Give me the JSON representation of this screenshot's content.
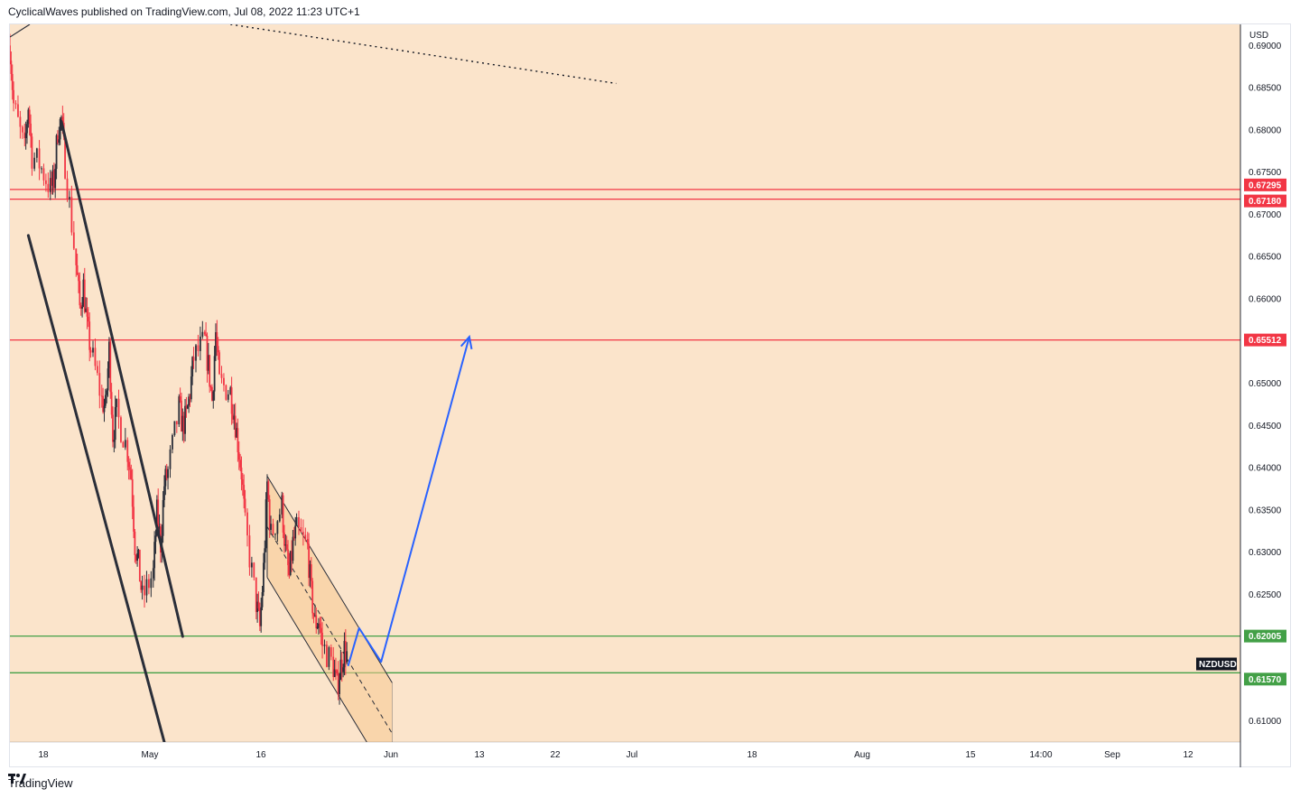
{
  "header": {
    "published_line": "CyclicalWaves published on TradingView.com, Jul 08, 2022 11:23 UTC+1"
  },
  "footer": {
    "brand": "TradingView"
  },
  "colors": {
    "background": "#fbe4cb",
    "up": "#2a2e39",
    "down": "#f23645",
    "resistance": "#f23645",
    "support": "#43a047",
    "projection": "#2962ff",
    "channel": "#2a2e39",
    "channel_fill": "#f7c891"
  },
  "chart_data": {
    "type": "candlestick",
    "symbol": "NZDUSD",
    "currency_label": "USD",
    "y_ticks": [
      "0.69000",
      "0.68500",
      "0.68000",
      "0.67500",
      "0.67000",
      "0.66500",
      "0.66000",
      "0.65500",
      "0.65000",
      "0.64500",
      "0.64000",
      "0.63500",
      "0.63000",
      "0.62500",
      "0.62000",
      "0.61500",
      "0.61000"
    ],
    "x_ticks": [
      "18",
      "May",
      "16",
      "Jun",
      "13",
      "22",
      "Jul",
      "18",
      "Aug",
      "15",
      "14:00",
      "Sep",
      "12"
    ],
    "ylim": [
      0.6075,
      0.6925
    ],
    "horizontal_levels": [
      {
        "value": 0.67295,
        "label": "0.67295",
        "kind": "resistance"
      },
      {
        "value": 0.6718,
        "label": "0.67180",
        "kind": "resistance"
      },
      {
        "value": 0.65512,
        "label": "0.65512",
        "kind": "resistance"
      },
      {
        "value": 0.62005,
        "label": "0.62005",
        "kind": "support"
      },
      {
        "value": 0.6157,
        "label": "0.61570",
        "kind": "support"
      }
    ],
    "symbol_tag": {
      "label": "NZDUSD",
      "value": 0.616
    },
    "price_path": [
      [
        "Apr 07",
        0.69
      ],
      [
        "Apr 08",
        0.683
      ],
      [
        "Apr 11",
        0.6775
      ],
      [
        "Apr 12",
        0.683
      ],
      [
        "Apr 13",
        0.677
      ],
      [
        "Apr 15",
        0.676
      ],
      [
        "Apr 18",
        0.673
      ],
      [
        "Apr 19",
        0.674
      ],
      [
        "Apr 20",
        0.68
      ],
      [
        "Apr 21",
        0.6812
      ],
      [
        "Apr 22",
        0.676
      ],
      [
        "Apr 25",
        0.664
      ],
      [
        "Apr 26",
        0.659
      ],
      [
        "Apr 27",
        0.6615
      ],
      [
        "Apr 28",
        0.6565
      ],
      [
        "Apr 29",
        0.654
      ],
      [
        "May 02",
        0.648
      ],
      [
        "May 03",
        0.647
      ],
      [
        "May 04",
        0.654
      ],
      [
        "May 05",
        0.644
      ],
      [
        "May 06",
        0.6465
      ],
      [
        "May 09",
        0.642
      ],
      [
        "May 10",
        0.639
      ],
      [
        "May 11",
        0.631
      ],
      [
        "May 12",
        0.6285
      ],
      [
        "May 13",
        0.6245
      ],
      [
        "May 16",
        0.6275
      ],
      [
        "May 17",
        0.6345
      ],
      [
        "May 18",
        0.631
      ],
      [
        "May 19",
        0.638
      ],
      [
        "May 20",
        0.6395
      ],
      [
        "May 23",
        0.647
      ],
      [
        "May 24",
        0.645
      ],
      [
        "May 25",
        0.646
      ],
      [
        "May 26",
        0.649
      ],
      [
        "May 27",
        0.653
      ],
      [
        "May 30",
        0.655
      ],
      [
        "May 31",
        0.652
      ],
      [
        "Jun 01",
        0.648
      ],
      [
        "Jun 02",
        0.656
      ],
      [
        "Jun 03",
        0.65
      ],
      [
        "Jun 06",
        0.649
      ],
      [
        "Jun 07",
        0.6465
      ],
      [
        "Jun 08",
        0.643
      ],
      [
        "Jun 09",
        0.6395
      ],
      [
        "Jun 10",
        0.633
      ],
      [
        "Jun 13",
        0.624
      ],
      [
        "Jun 14",
        0.621
      ],
      [
        "Jun 15",
        0.628
      ],
      [
        "Jun 16",
        0.638
      ],
      [
        "Jun 17",
        0.632
      ],
      [
        "Jun 20",
        0.6355
      ],
      [
        "Jun 21",
        0.63
      ],
      [
        "Jun 22",
        0.627
      ],
      [
        "Jun 23",
        0.631
      ],
      [
        "Jun 24",
        0.6325
      ],
      [
        "Jun 27",
        0.6305
      ],
      [
        "Jun 28",
        0.625
      ],
      [
        "Jun 29",
        0.6215
      ],
      [
        "Jun 30",
        0.622
      ],
      [
        "Jul 01",
        0.619
      ],
      [
        "Jul 04",
        0.6165
      ],
      [
        "Jul 05",
        0.614
      ],
      [
        "Jul 06",
        0.6165
      ],
      [
        "Jul 07",
        0.6185
      ],
      [
        "Jul 08",
        0.6175
      ]
    ],
    "channel_rect": [
      [
        "Jun 16",
        0.639
      ],
      [
        "Jul 11",
        0.621
      ],
      [
        "Jul 20",
        0.6175
      ],
      [
        "Jul 20",
        0.61
      ],
      [
        "Jun 16",
        0.627
      ]
    ],
    "projection_path": [
      [
        "Jul 08",
        0.6165
      ],
      [
        "Jul 11",
        0.621
      ],
      [
        "Jul 17",
        0.617
      ],
      [
        "Aug 10",
        0.6555
      ]
    ],
    "dotted_trend": [
      [
        "Jun 06",
        0.6925
      ],
      [
        "Sep 19",
        0.6855
      ]
    ],
    "falling_channel_upper": [
      [
        "Apr 21",
        0.681
      ],
      [
        "May 24",
        0.62
      ]
    ],
    "falling_channel_lower": [
      [
        "Apr 12",
        0.6675
      ],
      [
        "May 19",
        0.6075
      ]
    ]
  }
}
